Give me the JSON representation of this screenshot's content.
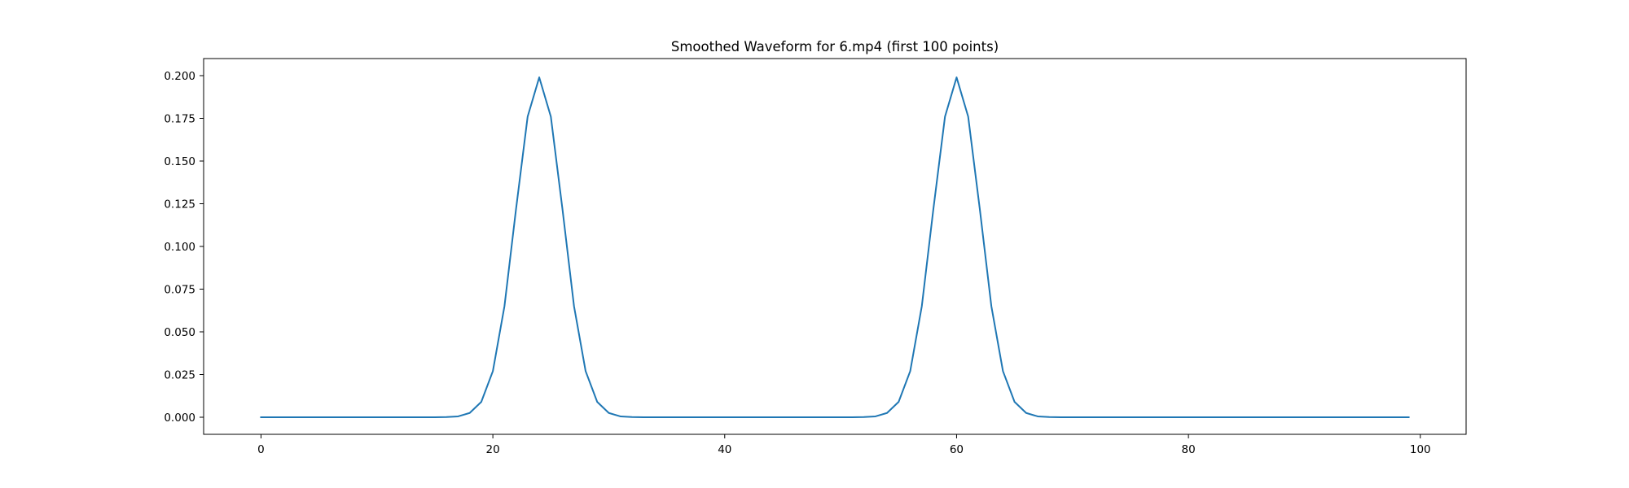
{
  "chart_data": {
    "type": "line",
    "title": "Smoothed Waveform for 6.mp4 (first 100 points)",
    "xlabel": "",
    "ylabel": "",
    "xlim": [
      -4.95,
      103.95
    ],
    "ylim": [
      -0.01,
      0.21
    ],
    "x_ticks": [
      0,
      20,
      40,
      60,
      80,
      100
    ],
    "x_tick_labels": [
      "0",
      "20",
      "40",
      "60",
      "80",
      "100"
    ],
    "y_ticks": [
      0,
      0.025,
      0.05,
      0.075,
      0.1,
      0.125,
      0.15,
      0.175,
      0.2
    ],
    "y_tick_labels": [
      "0.000",
      "0.025",
      "0.050",
      "0.075",
      "0.100",
      "0.125",
      "0.150",
      "0.175",
      "0.200"
    ],
    "grid": false,
    "legend": "none",
    "series": [
      {
        "color": "#1f77b4",
        "x_start": 0,
        "x_step": 1,
        "values": [
          0,
          0,
          0,
          0,
          0,
          0,
          0,
          0,
          0,
          0,
          0,
          0,
          0,
          0,
          0,
          0,
          0.0001,
          0.0005,
          0.0025,
          0.009,
          0.027,
          0.065,
          0.122,
          0.176,
          0.199,
          0.176,
          0.122,
          0.065,
          0.027,
          0.009,
          0.0025,
          0.0005,
          0.0001,
          0,
          0,
          0,
          0,
          0,
          0,
          0,
          0,
          0,
          0,
          0,
          0,
          0,
          0,
          0,
          0,
          0,
          0,
          0,
          0.0001,
          0.0005,
          0.0025,
          0.009,
          0.027,
          0.065,
          0.122,
          0.176,
          0.199,
          0.176,
          0.122,
          0.065,
          0.027,
          0.009,
          0.0025,
          0.0005,
          0.0001,
          0,
          0,
          0,
          0,
          0,
          0,
          0,
          0,
          0,
          0,
          0,
          0,
          0,
          0,
          0,
          0,
          0,
          0,
          0,
          0,
          0,
          0,
          0,
          0,
          0,
          0,
          0,
          0,
          0,
          0,
          0
        ]
      }
    ]
  }
}
